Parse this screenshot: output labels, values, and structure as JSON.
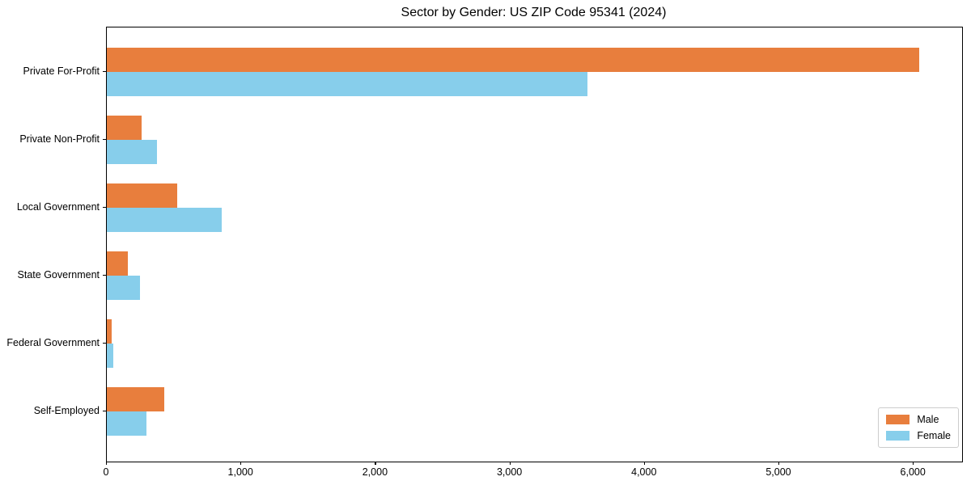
{
  "title": "Sector by Gender: US ZIP Code 95341 (2024)",
  "colors": {
    "male": "#e87e3d",
    "female": "#87ceeb",
    "frame": "#000000",
    "legend_border": "#cccccc",
    "background": "#ffffff"
  },
  "chart_data": {
    "type": "bar",
    "orientation": "horizontal",
    "title": "Sector by Gender: US ZIP Code 95341 (2024)",
    "categories": [
      "Private For-Profit",
      "Private Non-Profit",
      "Local Government",
      "State Government",
      "Federal Government",
      "Self-Employed"
    ],
    "series": [
      {
        "name": "Male",
        "color": "#e87e3d",
        "values": [
          6040,
          260,
          525,
          155,
          35,
          430
        ]
      },
      {
        "name": "Female",
        "color": "#87ceeb",
        "values": [
          3575,
          375,
          855,
          245,
          50,
          295
        ]
      }
    ],
    "xlabel": "",
    "ylabel": "",
    "xlim": [
      0,
      6360
    ],
    "x_ticks": [
      0,
      1000,
      2000,
      3000,
      4000,
      5000,
      6000
    ],
    "x_tick_labels": [
      "0",
      "1,000",
      "2,000",
      "3,000",
      "4,000",
      "5,000",
      "6,000"
    ],
    "grid": false,
    "legend": {
      "position": "lower right",
      "entries": [
        "Male",
        "Female"
      ]
    }
  }
}
